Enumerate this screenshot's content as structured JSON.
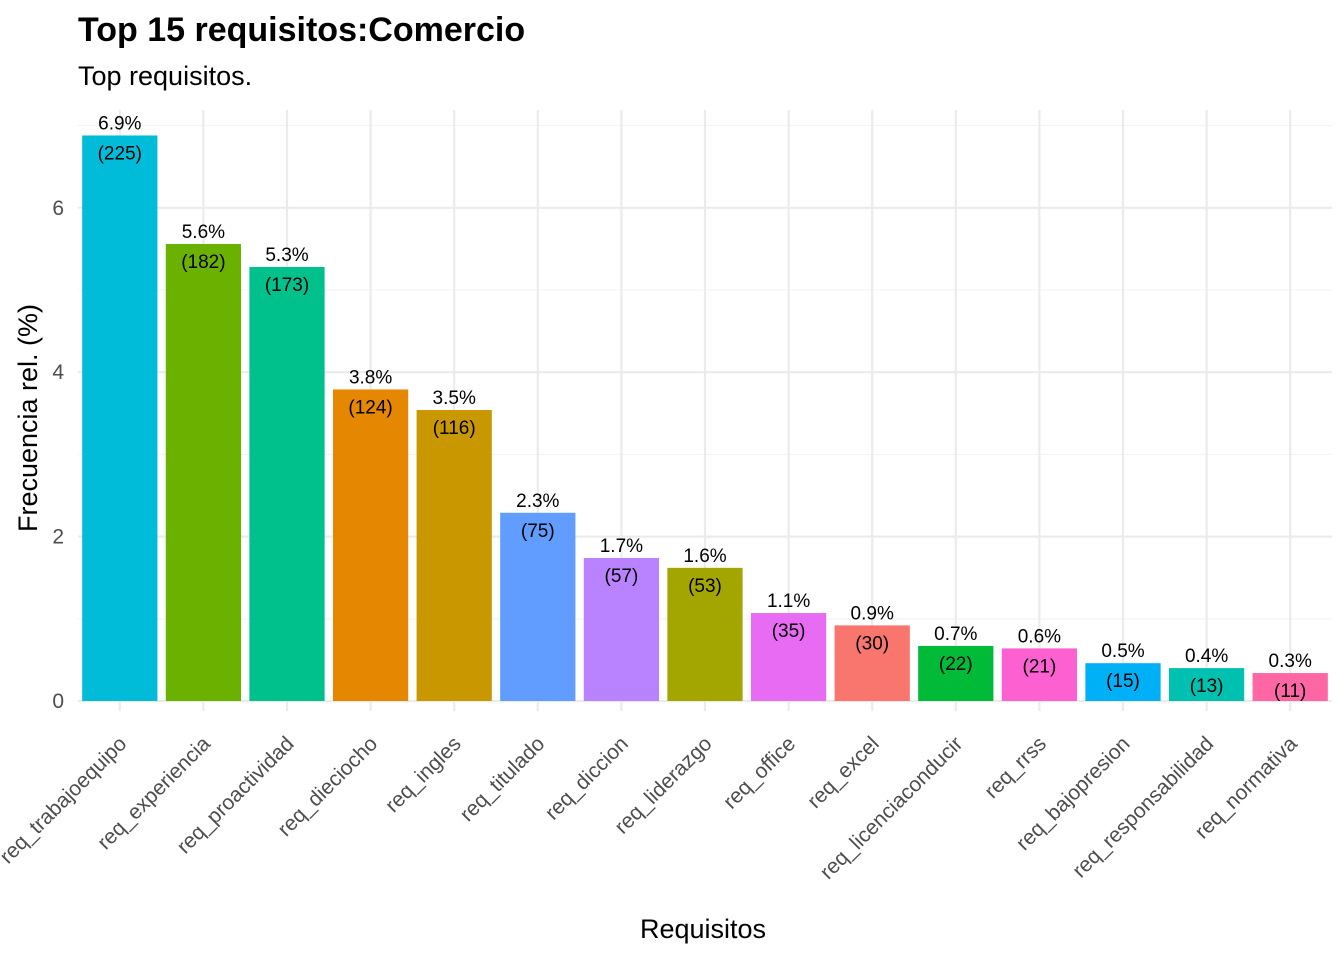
{
  "chart_data": {
    "type": "bar",
    "title": "Top 15 requisitos:Comercio",
    "subtitle": "Top requisitos.",
    "xlabel": "Requisitos",
    "ylabel": "Frecuencia rel. (%)",
    "ylim": [
      0,
      7.1
    ],
    "yticks": [
      0,
      2,
      4,
      6
    ],
    "ytick_labels": [
      "0",
      "2",
      "4",
      "6"
    ],
    "grid": true,
    "legend": "none",
    "categories": [
      "req_trabajoequipo",
      "req_experiencia",
      "req_proactividad",
      "req_dieciocho",
      "req_ingles",
      "req_titulado",
      "req_diccion",
      "req_liderazgo",
      "req_office",
      "req_excel",
      "req_licenciaconducir",
      "req_rrss",
      "req_bajopresion",
      "req_responsabilidad",
      "req_normativa"
    ],
    "values": [
      6.88,
      5.56,
      5.28,
      3.79,
      3.54,
      2.29,
      1.74,
      1.62,
      1.07,
      0.92,
      0.67,
      0.64,
      0.46,
      0.4,
      0.34
    ],
    "pct_labels": [
      "6.9%",
      "5.6%",
      "5.3%",
      "3.8%",
      "3.5%",
      "2.3%",
      "1.7%",
      "1.6%",
      "1.1%",
      "0.9%",
      "0.7%",
      "0.6%",
      "0.5%",
      "0.4%",
      "0.3%"
    ],
    "count_labels": [
      "(225)",
      "(182)",
      "(173)",
      "(124)",
      "(116)",
      "(75)",
      "(57)",
      "(53)",
      "(35)",
      "(30)",
      "(22)",
      "(21)",
      "(15)",
      "(13)",
      "(11)"
    ],
    "colors": [
      "#00BCD8",
      "#6BB100",
      "#00C08B",
      "#E58700",
      "#C99800",
      "#619CFF",
      "#B983FF",
      "#A3A500",
      "#E76BF3",
      "#F8766D",
      "#00BA38",
      "#FD61D1",
      "#00B0F6",
      "#00C0AF",
      "#FF67A4"
    ]
  }
}
